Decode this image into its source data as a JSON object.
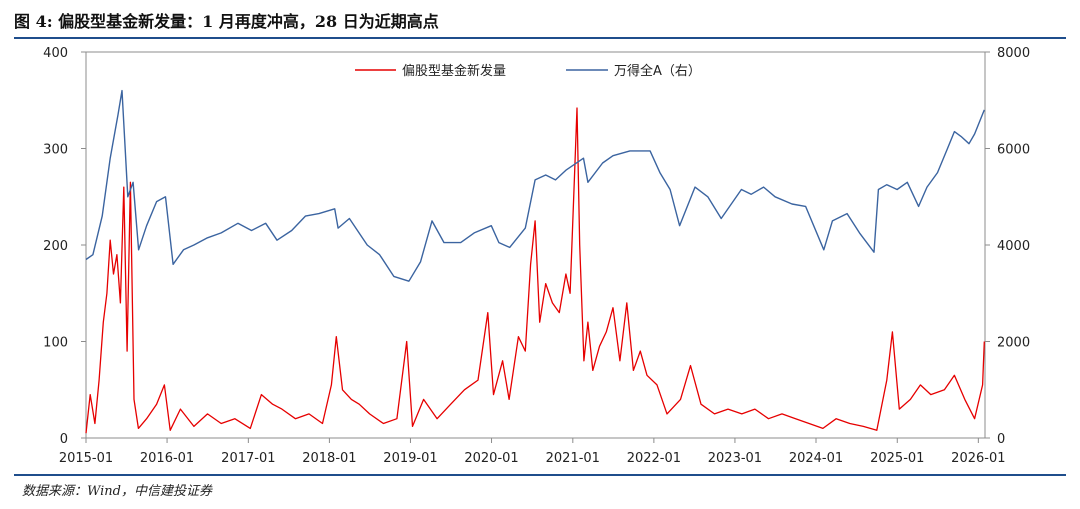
{
  "figure": {
    "title": "图 4:  偏股型基金新发量：1 月再度冲高，28 日为近期高点",
    "source": "数据来源：Wind，中信建投证券"
  },
  "colors": {
    "fund_line": "#e60000",
    "index_line": "#3b64a0",
    "rule": "#1f4e8c",
    "axis": "#8c8c8c"
  },
  "chart_data": {
    "type": "line",
    "title": "",
    "xlabel": "",
    "ylabel": "",
    "x_tick_labels": [
      "2015-01",
      "2016-01",
      "2017-01",
      "2018-01",
      "2019-01",
      "2020-01",
      "2021-01",
      "2022-01",
      "2023-01",
      "2024-01",
      "2025-01",
      "2026-01"
    ],
    "xlim": [
      "2015-01-01",
      "2026-01-31"
    ],
    "y_left": {
      "lim": [
        0,
        400
      ],
      "ticks": [
        0,
        100,
        200,
        300,
        400
      ]
    },
    "y_right": {
      "lim": [
        0,
        8000
      ],
      "ticks": [
        0,
        2000,
        4000,
        6000,
        8000
      ]
    },
    "grid": false,
    "legend_position": "top-center",
    "series": [
      {
        "name": "偏股型基金新发量",
        "axis": "left",
        "color": "#e60000",
        "points": [
          [
            "2015-01-01",
            5
          ],
          [
            "2015-01-20",
            45
          ],
          [
            "2015-02-10",
            15
          ],
          [
            "2015-03-01",
            60
          ],
          [
            "2015-03-20",
            120
          ],
          [
            "2015-04-05",
            150
          ],
          [
            "2015-04-20",
            205
          ],
          [
            "2015-05-05",
            170
          ],
          [
            "2015-05-20",
            190
          ],
          [
            "2015-06-05",
            140
          ],
          [
            "2015-06-20",
            260
          ],
          [
            "2015-07-05",
            90
          ],
          [
            "2015-07-20",
            265
          ],
          [
            "2015-08-05",
            40
          ],
          [
            "2015-08-25",
            10
          ],
          [
            "2015-10-01",
            20
          ],
          [
            "2015-11-15",
            35
          ],
          [
            "2015-12-20",
            55
          ],
          [
            "2016-01-15",
            8
          ],
          [
            "2016-03-01",
            30
          ],
          [
            "2016-05-01",
            12
          ],
          [
            "2016-07-01",
            25
          ],
          [
            "2016-09-01",
            15
          ],
          [
            "2016-11-01",
            20
          ],
          [
            "2017-01-10",
            10
          ],
          [
            "2017-03-01",
            45
          ],
          [
            "2017-04-20",
            35
          ],
          [
            "2017-06-01",
            30
          ],
          [
            "2017-08-01",
            20
          ],
          [
            "2017-10-01",
            25
          ],
          [
            "2017-12-01",
            15
          ],
          [
            "2018-01-10",
            55
          ],
          [
            "2018-02-01",
            105
          ],
          [
            "2018-03-01",
            50
          ],
          [
            "2018-04-10",
            40
          ],
          [
            "2018-05-15",
            35
          ],
          [
            "2018-07-01",
            25
          ],
          [
            "2018-09-01",
            15
          ],
          [
            "2018-11-01",
            20
          ],
          [
            "2018-12-15",
            100
          ],
          [
            "2019-01-10",
            12
          ],
          [
            "2019-03-01",
            40
          ],
          [
            "2019-05-01",
            20
          ],
          [
            "2019-07-01",
            35
          ],
          [
            "2019-09-01",
            50
          ],
          [
            "2019-11-01",
            60
          ],
          [
            "2019-12-15",
            130
          ],
          [
            "2020-01-10",
            45
          ],
          [
            "2020-02-20",
            80
          ],
          [
            "2020-03-20",
            40
          ],
          [
            "2020-05-01",
            105
          ],
          [
            "2020-06-01",
            90
          ],
          [
            "2020-06-25",
            180
          ],
          [
            "2020-07-15",
            225
          ],
          [
            "2020-08-05",
            120
          ],
          [
            "2020-09-01",
            160
          ],
          [
            "2020-10-01",
            140
          ],
          [
            "2020-11-01",
            130
          ],
          [
            "2020-12-01",
            170
          ],
          [
            "2020-12-20",
            150
          ],
          [
            "2021-01-10",
            280
          ],
          [
            "2021-01-20",
            342
          ],
          [
            "2021-02-01",
            200
          ],
          [
            "2021-02-20",
            80
          ],
          [
            "2021-03-10",
            120
          ],
          [
            "2021-04-01",
            70
          ],
          [
            "2021-05-01",
            95
          ],
          [
            "2021-06-01",
            110
          ],
          [
            "2021-07-01",
            135
          ],
          [
            "2021-08-01",
            80
          ],
          [
            "2021-09-01",
            140
          ],
          [
            "2021-10-01",
            70
          ],
          [
            "2021-11-01",
            90
          ],
          [
            "2021-12-01",
            65
          ],
          [
            "2022-01-15",
            55
          ],
          [
            "2022-03-01",
            25
          ],
          [
            "2022-05-01",
            40
          ],
          [
            "2022-06-15",
            75
          ],
          [
            "2022-08-01",
            35
          ],
          [
            "2022-10-01",
            25
          ],
          [
            "2022-12-01",
            30
          ],
          [
            "2023-02-01",
            25
          ],
          [
            "2023-04-01",
            30
          ],
          [
            "2023-06-01",
            20
          ],
          [
            "2023-08-01",
            25
          ],
          [
            "2023-10-01",
            20
          ],
          [
            "2023-12-01",
            15
          ],
          [
            "2024-02-01",
            10
          ],
          [
            "2024-04-01",
            20
          ],
          [
            "2024-06-01",
            15
          ],
          [
            "2024-08-01",
            12
          ],
          [
            "2024-10-01",
            8
          ],
          [
            "2024-11-15",
            60
          ],
          [
            "2024-12-10",
            110
          ],
          [
            "2025-01-10",
            30
          ],
          [
            "2025-03-01",
            40
          ],
          [
            "2025-04-15",
            55
          ],
          [
            "2025-06-01",
            45
          ],
          [
            "2025-08-01",
            50
          ],
          [
            "2025-09-15",
            65
          ],
          [
            "2025-11-01",
            40
          ],
          [
            "2025-12-15",
            20
          ],
          [
            "2026-01-20",
            55
          ],
          [
            "2026-01-28",
            100
          ]
        ]
      },
      {
        "name": "万得全A（右）",
        "axis": "right",
        "color": "#3b64a0",
        "points": [
          [
            "2015-01-01",
            3700
          ],
          [
            "2015-02-01",
            3800
          ],
          [
            "2015-03-15",
            4600
          ],
          [
            "2015-04-20",
            5800
          ],
          [
            "2015-05-25",
            6700
          ],
          [
            "2015-06-12",
            7200
          ],
          [
            "2015-07-08",
            5000
          ],
          [
            "2015-08-01",
            5300
          ],
          [
            "2015-08-26",
            3900
          ],
          [
            "2015-10-01",
            4400
          ],
          [
            "2015-11-15",
            4900
          ],
          [
            "2015-12-25",
            5000
          ],
          [
            "2016-01-28",
            3600
          ],
          [
            "2016-03-15",
            3900
          ],
          [
            "2016-05-01",
            4000
          ],
          [
            "2016-07-01",
            4150
          ],
          [
            "2016-09-01",
            4250
          ],
          [
            "2016-11-15",
            4450
          ],
          [
            "2017-01-15",
            4300
          ],
          [
            "2017-03-20",
            4450
          ],
          [
            "2017-05-10",
            4100
          ],
          [
            "2017-07-15",
            4300
          ],
          [
            "2017-09-15",
            4600
          ],
          [
            "2017-11-15",
            4650
          ],
          [
            "2018-01-25",
            4750
          ],
          [
            "2018-02-09",
            4350
          ],
          [
            "2018-04-01",
            4550
          ],
          [
            "2018-06-20",
            4000
          ],
          [
            "2018-08-15",
            3800
          ],
          [
            "2018-10-18",
            3350
          ],
          [
            "2018-12-25",
            3250
          ],
          [
            "2019-02-15",
            3650
          ],
          [
            "2019-04-08",
            4500
          ],
          [
            "2019-06-01",
            4050
          ],
          [
            "2019-08-15",
            4050
          ],
          [
            "2019-10-15",
            4250
          ],
          [
            "2019-12-31",
            4400
          ],
          [
            "2020-02-03",
            4050
          ],
          [
            "2020-03-23",
            3950
          ],
          [
            "2020-06-01",
            4350
          ],
          [
            "2020-07-15",
            5350
          ],
          [
            "2020-09-01",
            5450
          ],
          [
            "2020-10-15",
            5350
          ],
          [
            "2020-12-01",
            5550
          ],
          [
            "2021-02-18",
            5800
          ],
          [
            "2021-03-10",
            5300
          ],
          [
            "2021-05-15",
            5700
          ],
          [
            "2021-07-01",
            5850
          ],
          [
            "2021-09-15",
            5950
          ],
          [
            "2021-12-15",
            5950
          ],
          [
            "2022-01-28",
            5500
          ],
          [
            "2022-03-15",
            5150
          ],
          [
            "2022-04-27",
            4400
          ],
          [
            "2022-07-05",
            5200
          ],
          [
            "2022-09-01",
            5000
          ],
          [
            "2022-10-31",
            4550
          ],
          [
            "2023-01-30",
            5150
          ],
          [
            "2023-03-15",
            5050
          ],
          [
            "2023-05-10",
            5200
          ],
          [
            "2023-07-01",
            5000
          ],
          [
            "2023-09-15",
            4850
          ],
          [
            "2023-11-15",
            4800
          ],
          [
            "2024-02-05",
            3900
          ],
          [
            "2024-03-15",
            4500
          ],
          [
            "2024-05-20",
            4650
          ],
          [
            "2024-07-15",
            4250
          ],
          [
            "2024-09-18",
            3850
          ],
          [
            "2024-10-08",
            5150
          ],
          [
            "2024-11-15",
            5250
          ],
          [
            "2024-12-31",
            5150
          ],
          [
            "2025-02-15",
            5300
          ],
          [
            "2025-04-07",
            4800
          ],
          [
            "2025-05-15",
            5200
          ],
          [
            "2025-07-01",
            5500
          ],
          [
            "2025-08-15",
            6000
          ],
          [
            "2025-09-15",
            6350
          ],
          [
            "2025-10-15",
            6250
          ],
          [
            "2025-11-20",
            6100
          ],
          [
            "2025-12-15",
            6300
          ],
          [
            "2026-01-28",
            6800
          ]
        ]
      }
    ]
  }
}
